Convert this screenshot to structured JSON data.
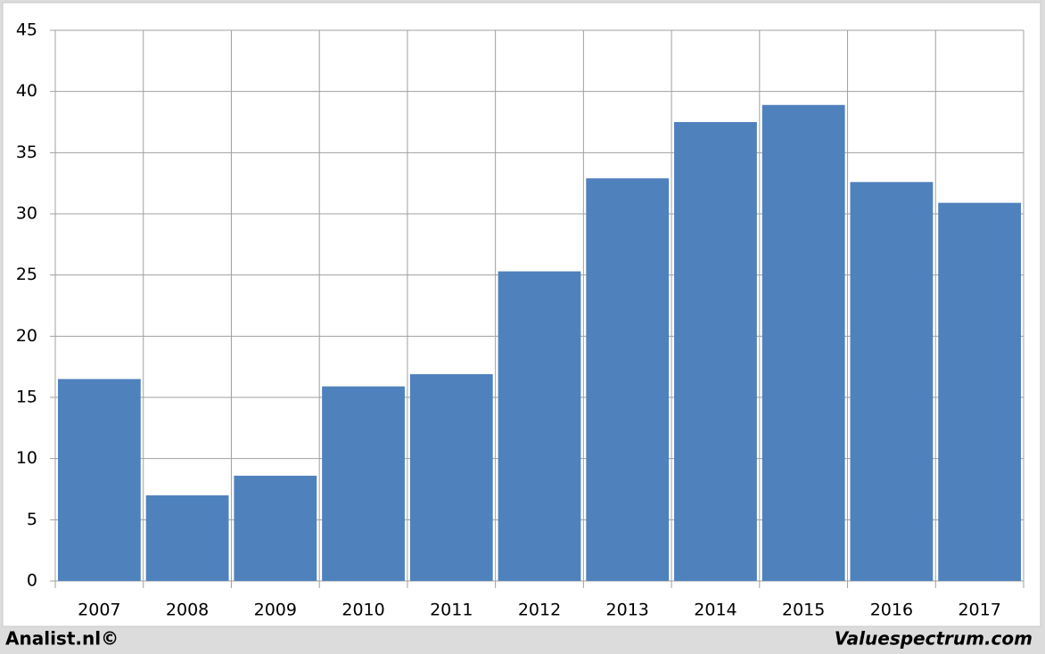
{
  "chart_data": {
    "type": "bar",
    "categories": [
      "2007",
      "2008",
      "2009",
      "2010",
      "2011",
      "2012",
      "2013",
      "2014",
      "2015",
      "2016",
      "2017"
    ],
    "values": [
      16.5,
      7.0,
      8.6,
      15.9,
      16.9,
      25.3,
      32.9,
      37.5,
      38.9,
      32.6,
      30.9
    ],
    "color": "#4f81bd",
    "ylim": [
      0,
      45
    ],
    "yticks": [
      0,
      5,
      10,
      15,
      20,
      25,
      30,
      35,
      40,
      45
    ],
    "grid": true,
    "annotations": [
      "Analist.nl©",
      "Valuespectrum.com"
    ]
  }
}
